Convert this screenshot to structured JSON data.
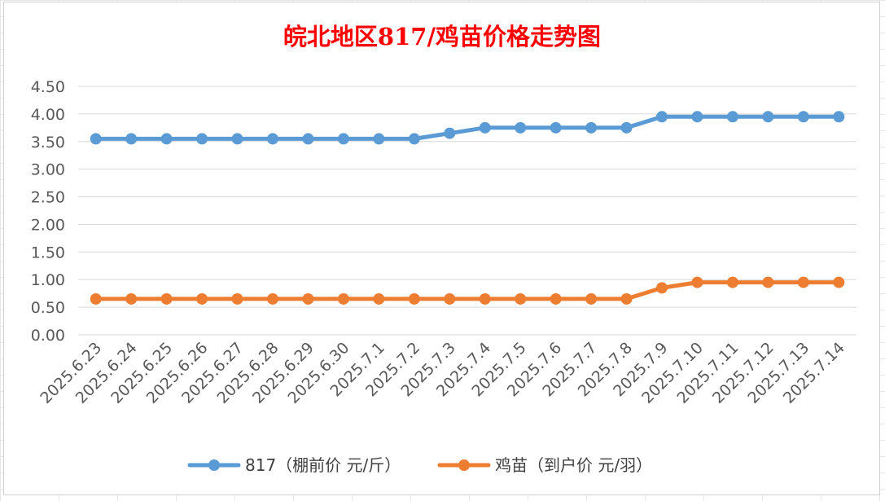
{
  "chart_data": {
    "type": "line",
    "title": "皖北地区817/鸡苗价格走势图",
    "xlabel": "",
    "ylabel": "",
    "ylim": [
      0,
      4.5
    ],
    "y_ticks": [
      "0.00",
      "0.50",
      "1.00",
      "1.50",
      "2.00",
      "2.50",
      "3.00",
      "3.50",
      "4.00",
      "4.50"
    ],
    "grid": true,
    "legend_position": "bottom",
    "categories": [
      "2025.6.23",
      "2025.6.24",
      "2025.6.25",
      "2025.6.26",
      "2025.6.27",
      "2025.6.28",
      "2025.6.29",
      "2025.6.30",
      "2025.7.1",
      "2025.7.2",
      "2025.7.3",
      "2025.7.4",
      "2025.7.5",
      "2025.7.6",
      "2025.7.7",
      "2025.7.8",
      "2025.7.9",
      "2025.7.10",
      "2025.7.11",
      "2025.7.12",
      "2025.7.13",
      "2025.7.14"
    ],
    "series": [
      {
        "name": "817（棚前价 元/斤）",
        "color": "#5b9bd5",
        "values": [
          3.55,
          3.55,
          3.55,
          3.55,
          3.55,
          3.55,
          3.55,
          3.55,
          3.55,
          3.55,
          3.65,
          3.75,
          3.75,
          3.75,
          3.75,
          3.75,
          3.95,
          3.95,
          3.95,
          3.95,
          3.95,
          3.95
        ]
      },
      {
        "name": "鸡苗（到户价 元/羽）",
        "color": "#ed7d31",
        "values": [
          0.65,
          0.65,
          0.65,
          0.65,
          0.65,
          0.65,
          0.65,
          0.65,
          0.65,
          0.65,
          0.65,
          0.65,
          0.65,
          0.65,
          0.65,
          0.65,
          0.85,
          0.95,
          0.95,
          0.95,
          0.95,
          0.95
        ]
      }
    ]
  }
}
